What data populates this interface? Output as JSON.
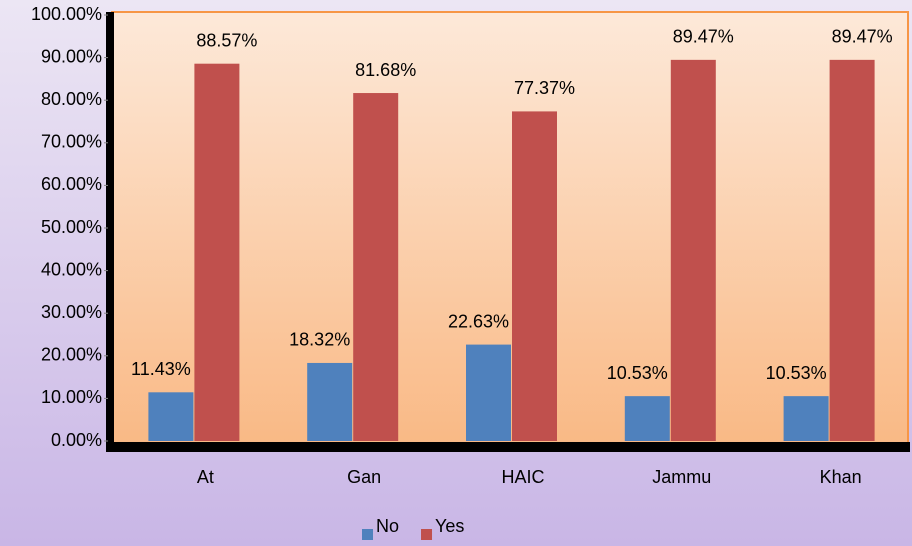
{
  "chart_data": {
    "type": "bar",
    "categories": [
      "At",
      "Gan",
      "HAIC",
      "Jammu",
      "Khan"
    ],
    "series": [
      {
        "name": "No",
        "color": "#4f81bd",
        "values": [
          11.43,
          18.32,
          22.63,
          10.53,
          10.53
        ],
        "value_labels": [
          "11.43%",
          "18.32%",
          "22.63%",
          "10.53%",
          "10.53%"
        ]
      },
      {
        "name": "Yes",
        "color": "#c0504d",
        "values": [
          88.57,
          81.68,
          77.37,
          89.47,
          89.47
        ],
        "value_labels": [
          "88.57%",
          "81.68%",
          "77.37%",
          "89.47%",
          "89.47%"
        ]
      }
    ],
    "ylim": [
      0,
      100
    ],
    "yticks": [
      {
        "value": 0,
        "label": "0.00%"
      },
      {
        "value": 10,
        "label": "10.00%"
      },
      {
        "value": 20,
        "label": "20.00%"
      },
      {
        "value": 30,
        "label": "30.00%"
      },
      {
        "value": 40,
        "label": "40.00%"
      },
      {
        "value": 50,
        "label": "50.00%"
      },
      {
        "value": 60,
        "label": "60.00%"
      },
      {
        "value": 70,
        "label": "70.00%"
      },
      {
        "value": 80,
        "label": "80.00%"
      },
      {
        "value": 90,
        "label": "90.00%"
      },
      {
        "value": 100,
        "label": "100.00%"
      }
    ],
    "legend": "bottom"
  }
}
